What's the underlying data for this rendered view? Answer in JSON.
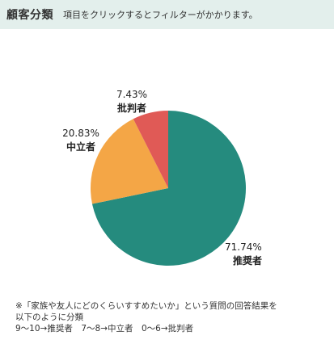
{
  "header": {
    "title": "顧客分類",
    "hint": "項目をクリックするとフィルターがかかります。"
  },
  "chart_data": {
    "type": "pie",
    "title": "",
    "categories": [
      "推奨者",
      "中立者",
      "批判者"
    ],
    "values": [
      71.74,
      20.83,
      7.43
    ],
    "value_labels": [
      "71.74%",
      "20.83%",
      "7.43%"
    ],
    "colors": [
      "#258b7e",
      "#f4a646",
      "#e05a56"
    ],
    "start_angle_deg": 0,
    "direction": "clockwise",
    "legend": "none"
  },
  "footnote": {
    "lines": [
      "※「家族や友人にどのくらいすすめたいか」という質問の回答結果を",
      "以下のように分類",
      "9～10→推奨者　7～8→中立者　0～6→批判者"
    ]
  }
}
